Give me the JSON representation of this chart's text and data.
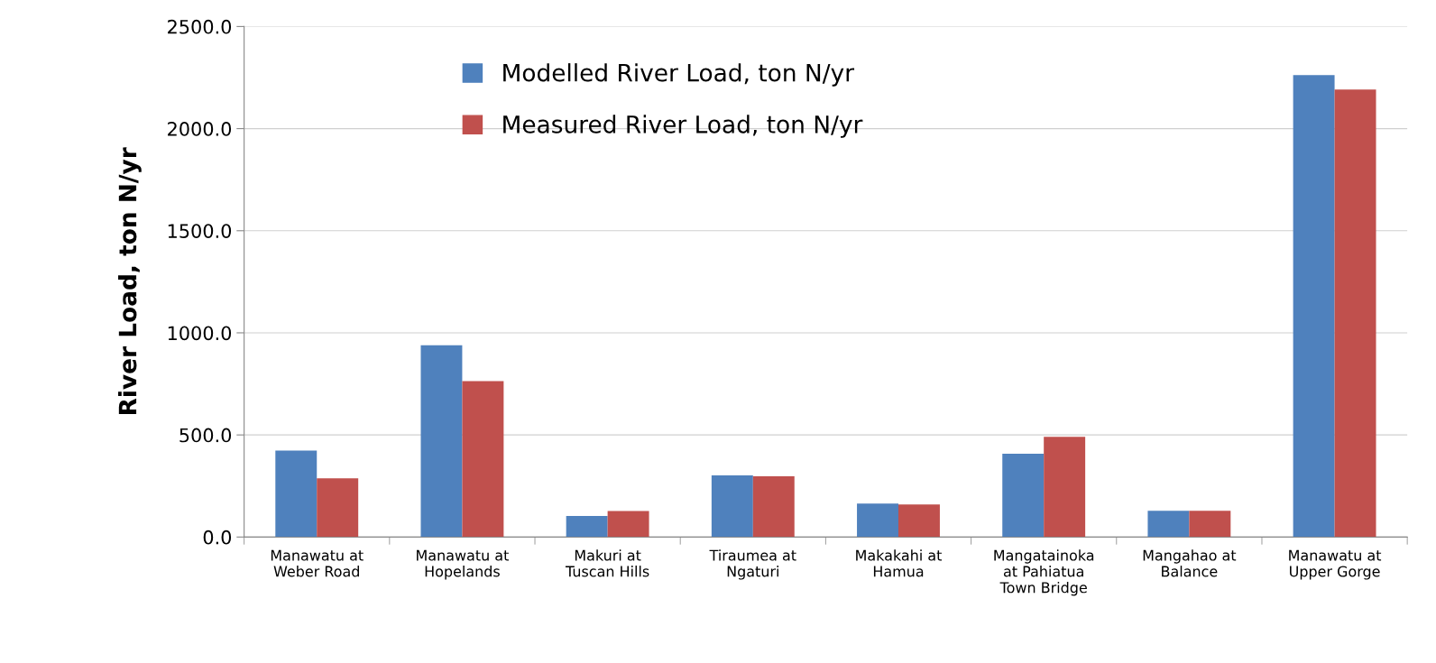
{
  "chart_data": {
    "type": "bar",
    "ylabel": "River Load, ton N/yr",
    "categories": [
      "Manawatu at\nWeber Road",
      "Manawatu at\nHopelands",
      "Makuri at\nTuscan Hills",
      "Tiraumea at\nNgaturi",
      "Makakahi at\nHamua",
      "Mangatainoka\nat Pahiatua\nTown Bridge",
      "Mangahao at\nBalance",
      "Manawatu at\nUpper Gorge"
    ],
    "series": [
      {
        "name": "Modelled River Load, ton N/yr",
        "color": "#4f81bd",
        "values": [
          423,
          939,
          103,
          302,
          164,
          408,
          129,
          2262
        ]
      },
      {
        "name": "Measured River Load, ton N/yr",
        "color": "#c0504d",
        "values": [
          288,
          764,
          127,
          298,
          160,
          491,
          129,
          2191
        ]
      }
    ],
    "ylim": [
      0,
      2500
    ],
    "yticks": [
      {
        "value": 0,
        "label": "0.0"
      },
      {
        "value": 500,
        "label": "500.0"
      },
      {
        "value": 1000,
        "label": "1000.0"
      },
      {
        "value": 1500,
        "label": "1500.0"
      },
      {
        "value": 2000,
        "label": "2000.0"
      },
      {
        "value": 2500,
        "label": "2500.0"
      }
    ],
    "grid": "y",
    "legend": "top"
  }
}
